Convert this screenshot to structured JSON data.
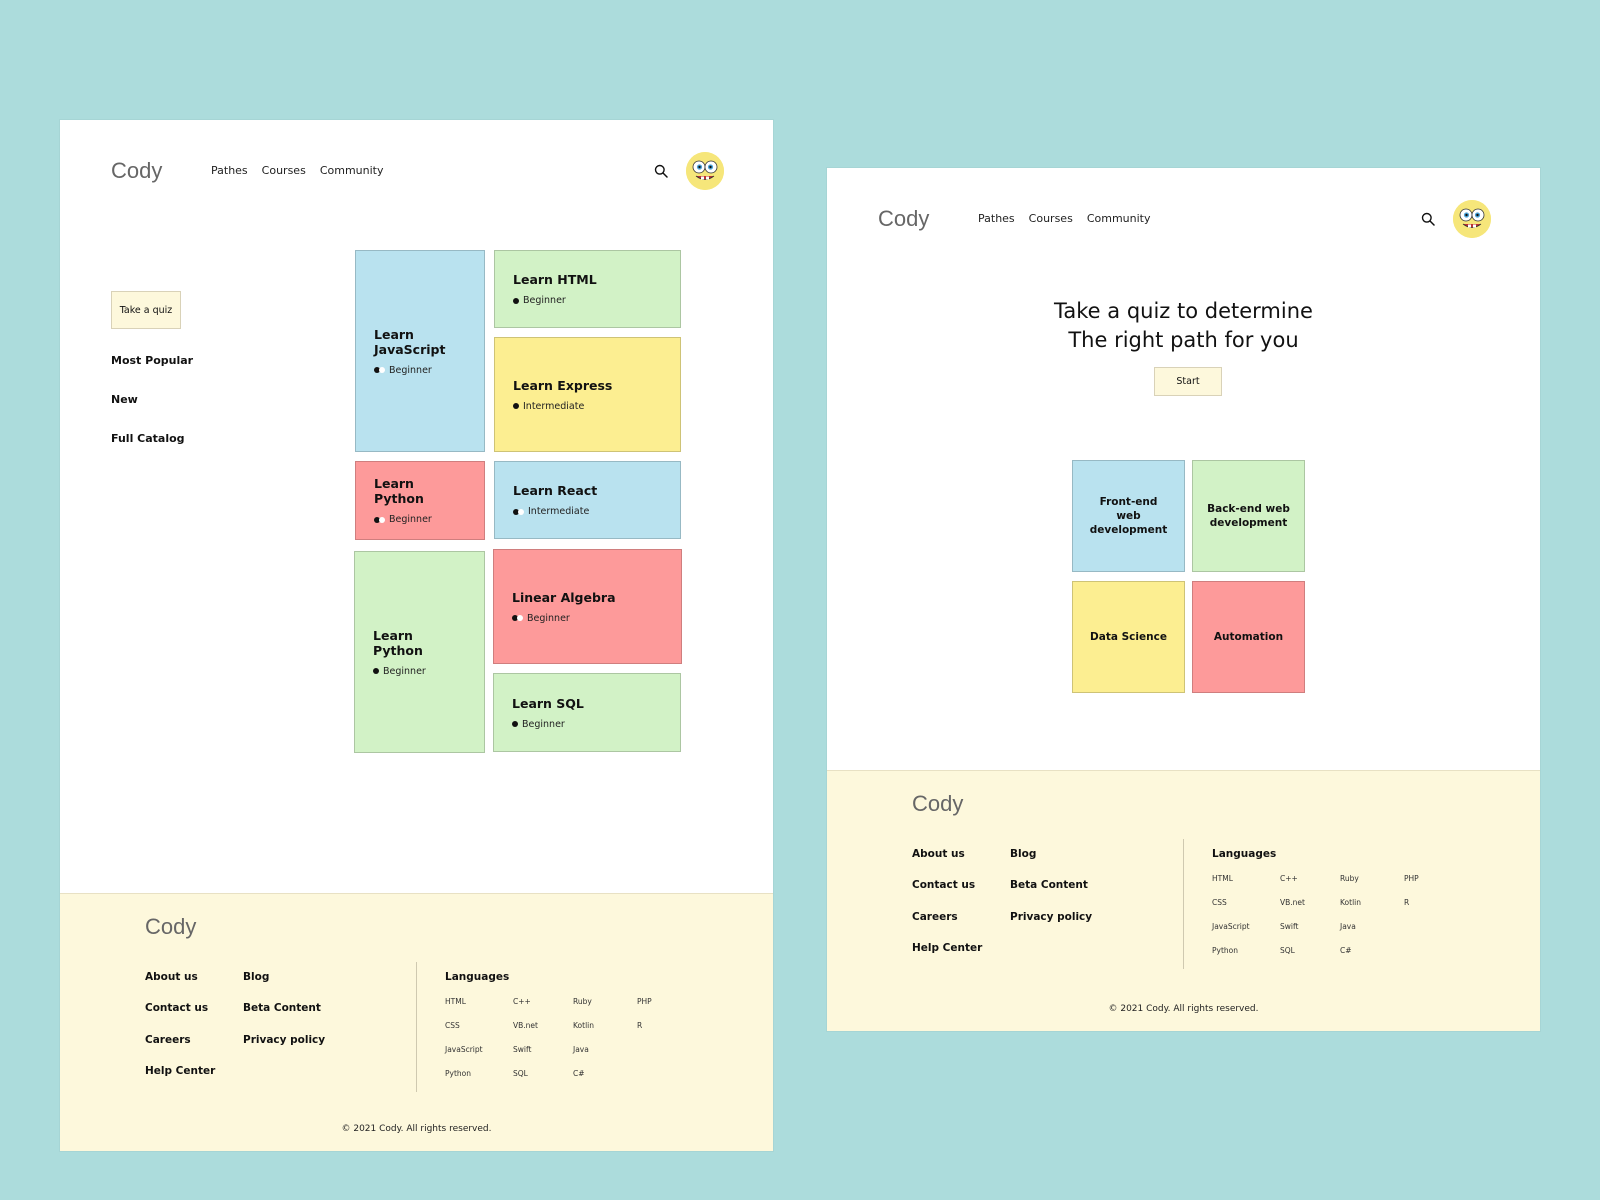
{
  "colors": {
    "background": "#acdcdc",
    "blue": "#b9e2ef",
    "green": "#d2f2c6",
    "yellow": "#fcee91",
    "red": "#fd9a9a",
    "cream": "#fdf8dc"
  },
  "header": {
    "logo": "Cody",
    "nav": [
      "Pathes",
      "Courses",
      "Community"
    ],
    "search_icon": "search-icon",
    "avatar_icon": "avatar-face-icon"
  },
  "catalog": {
    "quiz_button": "Take a quiz",
    "side_links": [
      "Most Popular",
      "New",
      "Full Catalog"
    ],
    "cards": [
      {
        "title": "Learn JavaScript",
        "level": "Beginner",
        "color": "blue",
        "dots": 2
      },
      {
        "title": "Learn HTML",
        "level": "Beginner",
        "color": "green",
        "dots": 1
      },
      {
        "title": "Learn Express",
        "level": "Intermediate",
        "color": "yellow",
        "dots": 1
      },
      {
        "title": "Learn Python",
        "level": "Beginner",
        "color": "red",
        "dots": 2
      },
      {
        "title": "Learn React",
        "level": "Intermediate",
        "color": "blue",
        "dots": 2
      },
      {
        "title": "Learn Python",
        "level": "Beginner",
        "color": "green",
        "dots": 1
      },
      {
        "title": "Linear Algebra",
        "level": "Beginner",
        "color": "red",
        "dots": 2
      },
      {
        "title": "Learn SQL",
        "level": "Beginner",
        "color": "green",
        "dots": 1
      }
    ]
  },
  "quiz": {
    "heading_line1": "Take a quiz to determine",
    "heading_line2": "The right path for you",
    "start_button": "Start",
    "paths": [
      {
        "label": "Front-end web development",
        "color": "blue"
      },
      {
        "label": "Back-end web development",
        "color": "green"
      },
      {
        "label": "Data Science",
        "color": "yellow"
      },
      {
        "label": "Automation",
        "color": "red"
      }
    ]
  },
  "footer": {
    "logo": "Cody",
    "col1": [
      "About us",
      "Contact us",
      "Careers",
      "Help Center"
    ],
    "col2": [
      "Blog",
      "Beta Content",
      "Privacy policy"
    ],
    "languages_title": "Languages",
    "languages": [
      [
        "HTML",
        "C++",
        "Ruby",
        "PHP"
      ],
      [
        "CSS",
        "VB.net",
        "Kotlin",
        "R"
      ],
      [
        "JavaScript",
        "Swift",
        "Java"
      ],
      [
        "Python",
        "SQL",
        "C#"
      ]
    ],
    "copyright": "© 2021 Cody. All rights reserved."
  }
}
